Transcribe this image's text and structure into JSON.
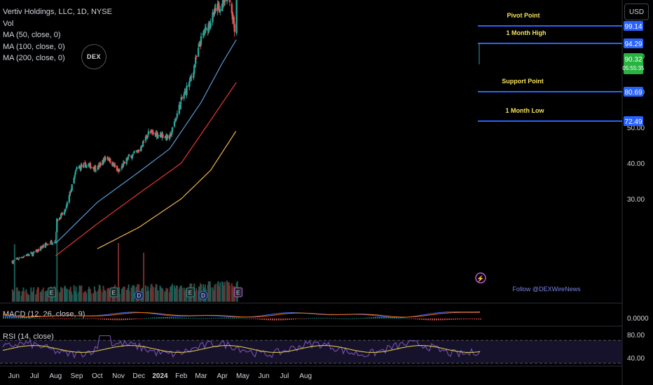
{
  "legend": {
    "symbol": "Vertiv Holdings, LLC, 1D, NYSE",
    "vol": "Vol",
    "ma50": "MA (50, close, 0)",
    "ma100": "MA (100, close, 0)",
    "ma200": "MA (200, close, 0)"
  },
  "currency_button": "USD",
  "watermark": "DEX",
  "follow_text": "Follow @DEXWireNews",
  "colors": {
    "up": "#26a69a",
    "down": "#ef5350",
    "ma50": "#5b9bd5",
    "ma100": "#e53935",
    "ma200": "#f2b44d",
    "level": "#2962ff",
    "level_text": "#f6e35a",
    "last_price": "#26b340"
  },
  "chart_data": {
    "type": "candlestick",
    "y_scale": [
      20,
      100
    ],
    "y_ticks": [
      "70.00",
      "60.00",
      "50.00",
      "40.00",
      "30.00"
    ],
    "x_ticks": [
      "Jun",
      "Jul",
      "Aug",
      "Sep",
      "Oct",
      "Nov",
      "Dec",
      "2024",
      "Feb",
      "Mar",
      "Apr",
      "May",
      "Jun",
      "Jul",
      "Aug"
    ],
    "last_price": "90.32",
    "countdown": "05:55:35",
    "levels": [
      {
        "name": "Pivot Point",
        "value": 99.14,
        "label": "99.14"
      },
      {
        "name": "1 Month High",
        "value": 94.29,
        "label": "94.29"
      },
      {
        "name": "Support Point",
        "value": 80.69,
        "label": "80.69"
      },
      {
        "name": "1 Month Low",
        "value": 72.49,
        "label": "72.49"
      }
    ],
    "close_anchors": [
      [
        "2023-06-01",
        12.5
      ],
      [
        "2023-06-15",
        14.0
      ],
      [
        "2023-07-01",
        14.8
      ],
      [
        "2023-07-15",
        16.8
      ],
      [
        "2023-08-01",
        18.5
      ],
      [
        "2023-08-03",
        24.0
      ],
      [
        "2023-08-15",
        26.5
      ],
      [
        "2023-09-01",
        38.5
      ],
      [
        "2023-09-15",
        39.5
      ],
      [
        "2023-10-01",
        38.5
      ],
      [
        "2023-10-15",
        42.0
      ],
      [
        "2023-11-01",
        37.5
      ],
      [
        "2023-11-15",
        41.5
      ],
      [
        "2023-12-01",
        43.5
      ],
      [
        "2023-12-15",
        48.5
      ],
      [
        "2024-01-02",
        48.0
      ],
      [
        "2024-01-15",
        47.0
      ],
      [
        "2024-02-01",
        57.5
      ],
      [
        "2024-02-15",
        63.5
      ],
      [
        "2024-03-01",
        74.5
      ],
      [
        "2024-03-15",
        80.0
      ],
      [
        "2024-04-01",
        85.5
      ],
      [
        "2024-04-10",
        88.0
      ],
      [
        "2024-04-19",
        78.0
      ],
      [
        "2024-04-23",
        90.32
      ]
    ],
    "ma50_anchors": [
      [
        "2023-08-01",
        17.5
      ],
      [
        "2023-10-01",
        29.0
      ],
      [
        "2023-12-01",
        37.5
      ],
      [
        "2024-01-15",
        44.0
      ],
      [
        "2024-03-01",
        57.0
      ],
      [
        "2024-04-01",
        68.0
      ],
      [
        "2024-04-23",
        75.0
      ]
    ],
    "ma100_anchors": [
      [
        "2023-08-01",
        14.0
      ],
      [
        "2023-10-01",
        23.0
      ],
      [
        "2023-12-01",
        31.5
      ],
      [
        "2024-02-01",
        40.0
      ],
      [
        "2024-03-15",
        52.0
      ],
      [
        "2024-04-23",
        63.0
      ]
    ],
    "ma200_anchors": [
      [
        "2023-10-01",
        16.0
      ],
      [
        "2023-12-01",
        22.0
      ],
      [
        "2024-02-01",
        30.0
      ],
      [
        "2024-03-15",
        38.0
      ],
      [
        "2024-04-23",
        49.5
      ]
    ],
    "earnings_dates": [
      "2023-07-26",
      "2023-10-25",
      "2024-02-14",
      "2024-04-24"
    ],
    "dividend_dates": [
      "2023-12-01",
      "2024-03-04"
    ],
    "macd": {
      "label": "MACD (12, 26, close, 9)",
      "tick": "0.0000"
    },
    "rsi": {
      "label": "RSI (14, close)",
      "ticks": [
        "80.00",
        "40.00"
      ],
      "upper": 70,
      "lower": 30
    }
  }
}
